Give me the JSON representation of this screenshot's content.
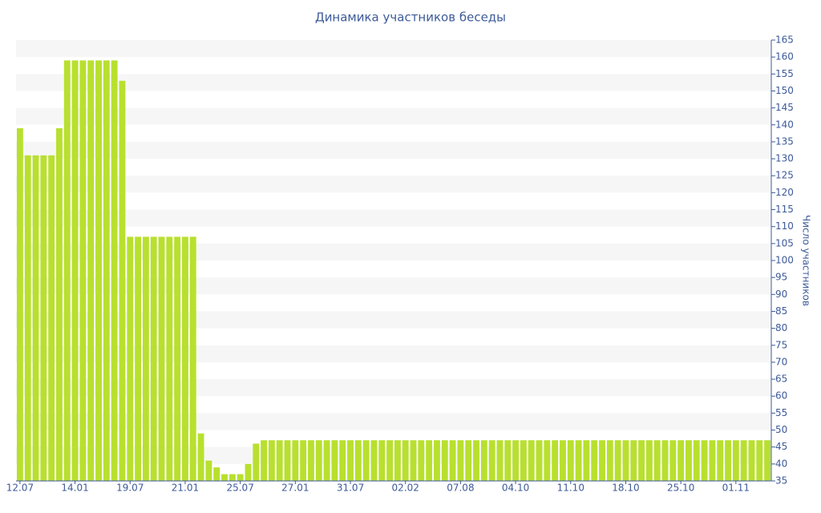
{
  "chart_data": {
    "type": "bar",
    "title": "Динамика участников беседы",
    "y_axis_label": "Число участников",
    "categories": [
      "12.07",
      null,
      null,
      null,
      null,
      null,
      null,
      "14.01",
      null,
      null,
      null,
      null,
      null,
      null,
      "19.07",
      null,
      null,
      null,
      null,
      null,
      null,
      "21.01",
      null,
      null,
      null,
      null,
      null,
      null,
      "25.07",
      null,
      null,
      null,
      null,
      null,
      null,
      "27.01",
      null,
      null,
      null,
      null,
      null,
      null,
      "31.07",
      null,
      null,
      null,
      null,
      null,
      null,
      "02.02",
      null,
      null,
      null,
      null,
      null,
      null,
      "07.08",
      null,
      null,
      null,
      null,
      null,
      null,
      "04.10",
      null,
      null,
      null,
      null,
      null,
      null,
      "11.10",
      null,
      null,
      null,
      null,
      null,
      null,
      "18.10",
      null,
      null,
      null,
      null,
      null,
      null,
      "25.10",
      null,
      null,
      null,
      null,
      null,
      null,
      "01.11",
      null,
      null,
      null,
      null
    ],
    "values": [
      139,
      131,
      131,
      131,
      131,
      139,
      159,
      159,
      159,
      159,
      159,
      159,
      159,
      153,
      107,
      107,
      107,
      107,
      107,
      107,
      107,
      107,
      107,
      49,
      41,
      39,
      37,
      37,
      37,
      40,
      46,
      47,
      47,
      47,
      47,
      47,
      47,
      47,
      47,
      47,
      47,
      47,
      47,
      47,
      47,
      47,
      47,
      47,
      47,
      47,
      47,
      47,
      47,
      47,
      47,
      47,
      47,
      47,
      47,
      47,
      47,
      47,
      47,
      47,
      47,
      47,
      47,
      47,
      47,
      47,
      47,
      47,
      47,
      47,
      47,
      47,
      47,
      47,
      47,
      47,
      47,
      47,
      47,
      47,
      47,
      47,
      47,
      47,
      47,
      47,
      47,
      47,
      47,
      47,
      47,
      47
    ],
    "color": "#b8e02e",
    "ylim": [
      35,
      165
    ],
    "yticks": [
      35,
      40,
      45,
      50,
      55,
      60,
      65,
      70,
      75,
      80,
      85,
      90,
      95,
      100,
      105,
      110,
      115,
      120,
      125,
      130,
      135,
      140,
      145,
      150,
      155,
      160,
      165
    ],
    "grid": true
  }
}
